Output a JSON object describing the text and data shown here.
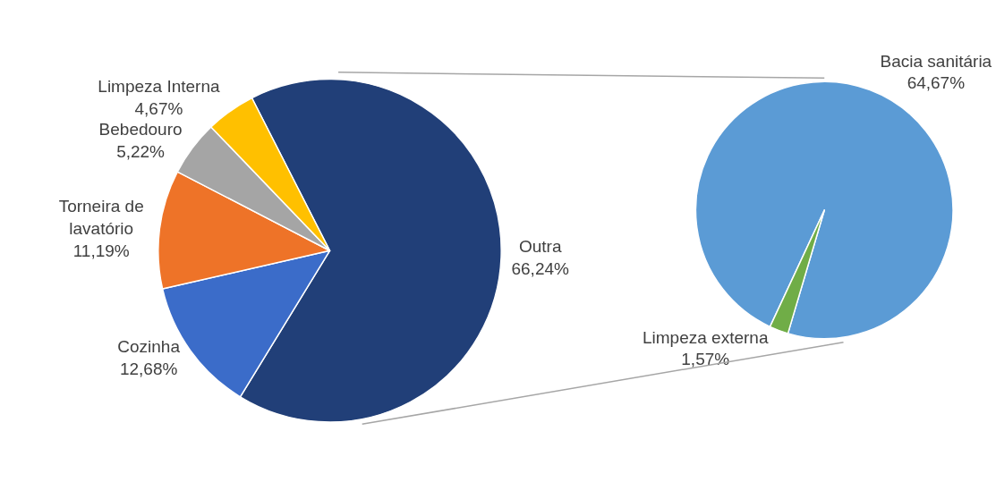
{
  "chart_data": [
    {
      "type": "pie",
      "categories": [
        "Outra",
        "Cozinha",
        "Torneira de lavatório",
        "Bebedouro",
        "Limpeza Interna"
      ],
      "values": [
        66.24,
        12.68,
        11.19,
        5.22,
        4.67
      ],
      "value_labels": [
        "66,24%",
        "12,68%",
        "11,19%",
        "5,22%",
        "4,67%"
      ],
      "colors": [
        "#213f78",
        "#3b6cc9",
        "#ee7328",
        "#a5a5a5",
        "#ffc000"
      ]
    },
    {
      "type": "pie",
      "categories": [
        "Bacia sanitária",
        "Limpeza externa"
      ],
      "values": [
        64.67,
        1.57
      ],
      "value_labels": [
        "64,67%",
        "1,57%"
      ],
      "colors": [
        "#5b9bd5",
        "#70ad47"
      ]
    }
  ]
}
